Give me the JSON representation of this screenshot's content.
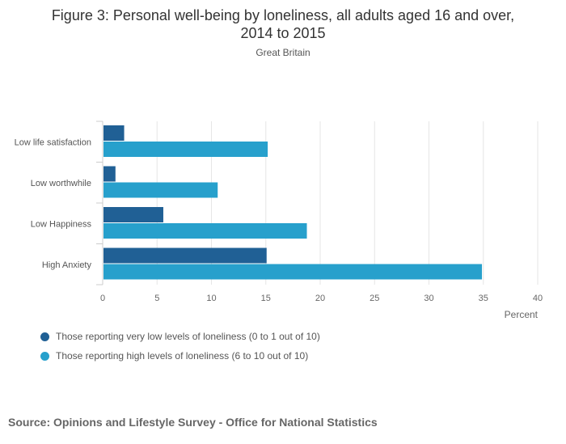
{
  "chart_data": {
    "type": "bar",
    "orientation": "horizontal",
    "title": "Figure 3: Personal well-being by loneliness, all adults aged 16 and over, 2014 to 2015",
    "subtitle": "Great Britain",
    "categories": [
      "Low life satisfaction",
      "Low worthwhile",
      "Low Happiness",
      "High Anxiety"
    ],
    "series": [
      {
        "name": "Those reporting very low levels of loneliness (0 to 1 out of 10)",
        "color": "#206095",
        "values": [
          1.9,
          1.1,
          5.5,
          15.0
        ]
      },
      {
        "name": "Those reporting high levels of loneliness (6 to 10 out of 10)",
        "color": "#27a0cc",
        "values": [
          15.1,
          10.5,
          18.7,
          34.8
        ]
      }
    ],
    "xlabel": "Percent",
    "ylabel": "",
    "xlim": [
      0,
      40
    ],
    "xticks": [
      0,
      5,
      10,
      15,
      20,
      25,
      30,
      35,
      40
    ],
    "grid": true,
    "legend_position": "bottom-left"
  },
  "title_line1": "Figure 3: Personal well-being by loneliness, all adults aged 16 and over,",
  "title_line2": "2014 to 2015",
  "source": "Source: Opinions and Lifestyle Survey - Office for National Statistics"
}
